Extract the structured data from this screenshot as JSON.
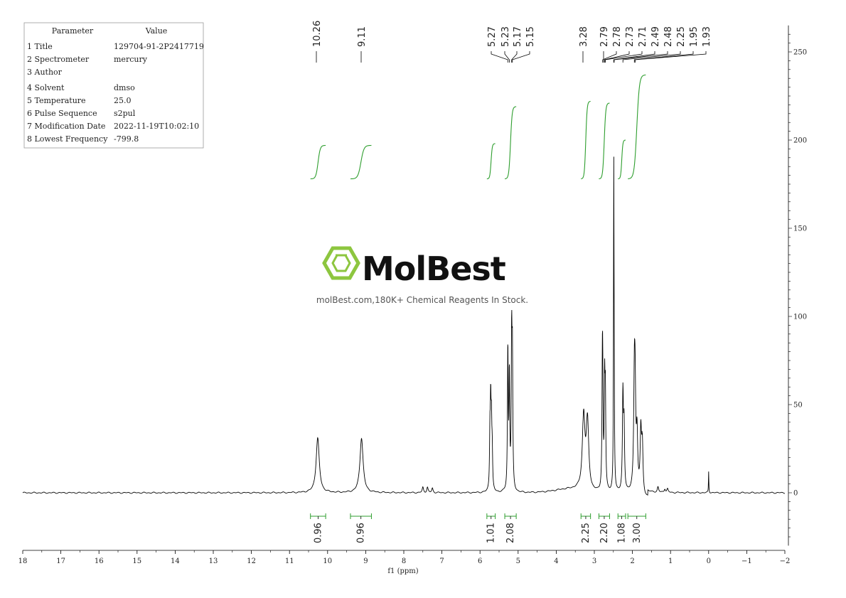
{
  "parameters": {
    "header": [
      "Parameter",
      "Value"
    ],
    "rows": [
      [
        "1 Title",
        "129704-91-2P2417719"
      ],
      [
        "2 Spectrometer",
        "mercury"
      ],
      [
        "3 Author",
        ""
      ],
      [
        "4 Solvent",
        "dmso"
      ],
      [
        "5 Temperature",
        "25.0"
      ],
      [
        "6 Pulse Sequence",
        "s2pul"
      ],
      [
        "7 Modification Date",
        "2022-11-19T10:02:10"
      ],
      [
        "8 Lowest Frequency",
        "-799.8"
      ]
    ]
  },
  "watermark": {
    "brand": "MolBest",
    "tagline": "molBest.com,180K+ Chemical Reagents In Stock.",
    "color": "#8dc63f"
  },
  "chart_data": {
    "type": "line",
    "xlabel": "f1 (ppm)",
    "x_ticks": [
      18,
      17,
      16,
      15,
      14,
      13,
      12,
      11,
      10,
      9,
      8,
      7,
      6,
      5,
      4,
      3,
      2,
      1,
      0,
      -1,
      -2
    ],
    "xlim": [
      18,
      -2
    ],
    "ylim": [
      -30,
      265
    ],
    "y_ticks": [
      0,
      50,
      100,
      150,
      200,
      250
    ],
    "series_color": "#000000",
    "integral_color": "#2e9e2e",
    "peaks": [
      {
        "ppm": 10.26,
        "height": 31,
        "width": 0.05
      },
      {
        "ppm": 9.11,
        "height": 31,
        "width": 0.05
      },
      {
        "ppm": 7.5,
        "height": 3,
        "width": 0.02
      },
      {
        "ppm": 7.38,
        "height": 3,
        "width": 0.02
      },
      {
        "ppm": 7.25,
        "height": 2.5,
        "width": 0.02
      },
      {
        "ppm": 5.74,
        "height": 30,
        "width": 0.012
      },
      {
        "ppm": 5.72,
        "height": 45,
        "width": 0.012
      },
      {
        "ppm": 5.7,
        "height": 33,
        "width": 0.012
      },
      {
        "ppm": 5.68,
        "height": 20,
        "width": 0.012
      },
      {
        "ppm": 5.27,
        "height": 80,
        "width": 0.012
      },
      {
        "ppm": 5.23,
        "height": 64,
        "width": 0.012
      },
      {
        "ppm": 5.17,
        "height": 82,
        "width": 0.012
      },
      {
        "ppm": 5.15,
        "height": 70,
        "width": 0.012
      },
      {
        "ppm": 3.28,
        "height": 42,
        "width": 0.04
      },
      {
        "ppm": 3.18,
        "height": 39,
        "width": 0.04
      },
      {
        "ppm": 2.79,
        "height": 55,
        "width": 0.012
      },
      {
        "ppm": 2.78,
        "height": 48,
        "width": 0.012
      },
      {
        "ppm": 2.73,
        "height": 57,
        "width": 0.012
      },
      {
        "ppm": 2.71,
        "height": 50,
        "width": 0.012
      },
      {
        "ppm": 2.49,
        "height": 170,
        "width": 0.008
      },
      {
        "ppm": 2.48,
        "height": 40,
        "width": 0.01
      },
      {
        "ppm": 2.25,
        "height": 54,
        "width": 0.015
      },
      {
        "ppm": 2.22,
        "height": 35,
        "width": 0.015
      },
      {
        "ppm": 1.95,
        "height": 56,
        "width": 0.02
      },
      {
        "ppm": 1.93,
        "height": 48,
        "width": 0.02
      },
      {
        "ppm": 1.88,
        "height": 30,
        "width": 0.02
      },
      {
        "ppm": 1.78,
        "height": 33,
        "width": 0.02
      },
      {
        "ppm": 1.74,
        "height": 28,
        "width": 0.02
      },
      {
        "ppm": 1.33,
        "height": 3,
        "width": 0.02
      },
      {
        "ppm": 1.15,
        "height": 2,
        "width": 0.02
      },
      {
        "ppm": 1.08,
        "height": 2,
        "width": 0.02
      },
      {
        "ppm": 0.0,
        "height": 12,
        "width": 0.006
      }
    ],
    "peak_labels": [
      "10.26",
      "9.11",
      "5.27",
      "5.23",
      "5.17",
      "5.15",
      "3.28",
      "2.79",
      "2.78",
      "2.73",
      "2.71",
      "2.49",
      "2.48",
      "2.25",
      "1.95",
      "1.93"
    ],
    "peak_label_ppm": [
      10.26,
      9.11,
      5.27,
      5.23,
      5.17,
      5.15,
      3.28,
      2.79,
      2.78,
      2.73,
      2.71,
      2.49,
      2.48,
      2.25,
      1.95,
      1.93
    ],
    "integrals": [
      {
        "from": 10.45,
        "to": 10.05,
        "value": "0.96",
        "y_start": 178,
        "y_end": 197
      },
      {
        "from": 9.4,
        "to": 8.85,
        "value": "0.96",
        "y_start": 178,
        "y_end": 197
      },
      {
        "from": 5.82,
        "to": 5.6,
        "value": "1.01",
        "y_start": 178,
        "y_end": 198
      },
      {
        "from": 5.35,
        "to": 5.05,
        "value": "2.08",
        "y_start": 178,
        "y_end": 219
      },
      {
        "from": 3.35,
        "to": 3.1,
        "value": "2.25",
        "y_start": 178,
        "y_end": 222
      },
      {
        "from": 2.88,
        "to": 2.6,
        "value": "2.20",
        "y_start": 178,
        "y_end": 221
      },
      {
        "from": 2.38,
        "to": 2.18,
        "value": "1.08",
        "y_start": 178,
        "y_end": 200
      },
      {
        "from": 2.12,
        "to": 1.65,
        "value": "3.00",
        "y_start": 178,
        "y_end": 237
      }
    ]
  }
}
